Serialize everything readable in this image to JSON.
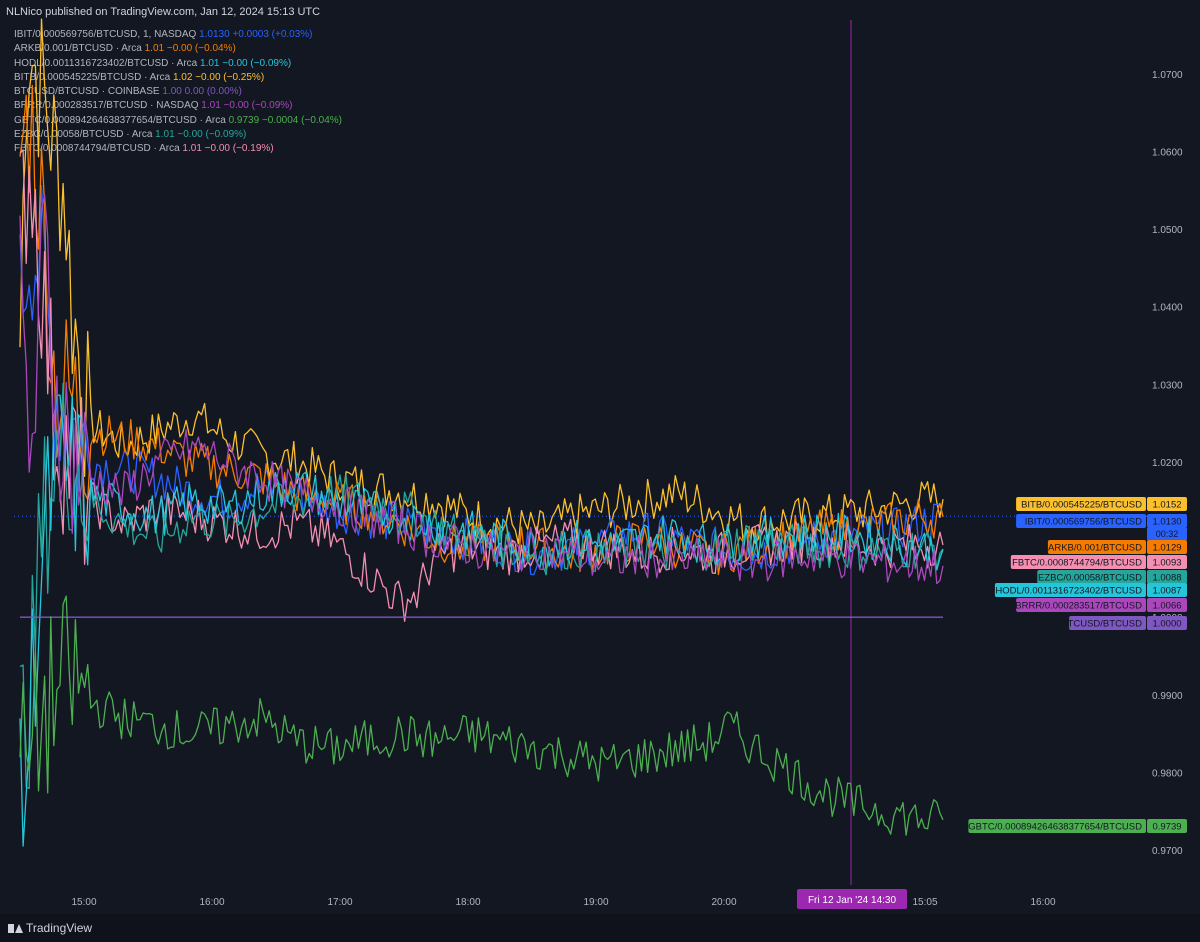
{
  "header": {
    "published": "NLNico published on TradingView.com, Jan 12, 2024 15:13 UTC"
  },
  "legend": [
    {
      "sym": "IBIT/0.000569756/BTCUSD, 1, NASDAQ",
      "vals": "1.0130  +0.0003 (+0.03%)",
      "color": "#2962ff"
    },
    {
      "sym": "ARKB/0.001/BTCUSD · Arca",
      "vals": "1.01  −0.00 (−0.04%)",
      "color": "#f57c00"
    },
    {
      "sym": "HODL/0.0011316723402/BTCUSD · Arca",
      "vals": "1.01  −0.00 (−0.09%)",
      "color": "#26c6da"
    },
    {
      "sym": "BITB/0.000545225/BTCUSD · Arca",
      "vals": "1.02  −0.00 (−0.25%)",
      "color": "#fbc02d"
    },
    {
      "sym": "BTCUSD/BTCUSD · COINBASE",
      "vals": "1.00  0.00 (0.00%)",
      "color": "#7e57c2"
    },
    {
      "sym": "BRRR/0.000283517/BTCUSD · NASDAQ",
      "vals": "1.01  −0.00 (−0.09%)",
      "color": "#ab47bc"
    },
    {
      "sym": "GBTC/0.000894264638377654/BTCUSD · Arca",
      "vals": "0.9739  −0.0004 (−0.04%)",
      "color": "#4caf50"
    },
    {
      "sym": "EZBC/0.00058/BTCUSD · Arca",
      "vals": "1.01  −0.00 (−0.09%)",
      "color": "#26a69a"
    },
    {
      "sym": "FBTC/0.0008744794/BTCUSD · Arca",
      "vals": "1.01  −0.00 (−0.19%)",
      "color": "#f48fb1"
    }
  ],
  "footer": {
    "brand": "TradingView"
  },
  "chart_data": {
    "type": "line",
    "title": "",
    "xlabel": "",
    "ylabel": "",
    "x_ticks": [
      "15:00",
      "16:00",
      "17:00",
      "18:00",
      "19:00",
      "20:00",
      "15:05",
      "16:00"
    ],
    "y_ticks": [
      "1.0700",
      "1.0600",
      "1.0500",
      "1.0400",
      "1.0300",
      "1.0200",
      "1.0100",
      "1.0000",
      "0.9900",
      "0.9800",
      "0.9700"
    ],
    "ylim": [
      0.9655,
      1.0795
    ],
    "crosshair_label": "Fri 12 Jan '24   14:30",
    "grid": false,
    "series": [
      {
        "name": "BITB/0.000545225/BTCUSD",
        "color": "#fbc02d",
        "last": 1.0152,
        "label": "1.0152",
        "points": [
          [
            0,
            1.035
          ],
          [
            0.02,
            1.075
          ],
          [
            0.05,
            1.07
          ],
          [
            0.08,
            1.065
          ],
          [
            0.1,
            1.06
          ],
          [
            0.13,
            1.055
          ],
          [
            0.15,
            1.04
          ],
          [
            0.2,
            1.025
          ],
          [
            0.3,
            1.022
          ],
          [
            0.4,
            1.024
          ],
          [
            0.5,
            1.026
          ],
          [
            0.6,
            1.023
          ],
          [
            0.7,
            1.021
          ],
          [
            0.8,
            1.02
          ],
          [
            0.9,
            1.018
          ],
          [
            1.0,
            1.017
          ],
          [
            1.1,
            1.016
          ],
          [
            1.2,
            1.015
          ],
          [
            1.3,
            1.013
          ],
          [
            1.4,
            1.012
          ],
          [
            1.5,
            1.011
          ],
          [
            1.6,
            1.013
          ],
          [
            1.7,
            1.014
          ],
          [
            1.8,
            1.015
          ],
          [
            1.9,
            1.016
          ],
          [
            2.0,
            1.014
          ],
          [
            2.1,
            1.012
          ],
          [
            2.3,
            1.013
          ],
          [
            2.5,
            1.014
          ],
          [
            2.6,
            1.015
          ],
          [
            2.67,
            1.0152
          ]
        ]
      },
      {
        "name": "IBIT/0.000569756/BTCUSD",
        "color": "#2962ff",
        "last": 1.013,
        "label": "1.0130",
        "points": [
          [
            0,
            1.04
          ],
          [
            0.03,
            1.05
          ],
          [
            0.06,
            1.045
          ],
          [
            0.1,
            1.03
          ],
          [
            0.15,
            1.025
          ],
          [
            0.2,
            1.02
          ],
          [
            0.3,
            1.019
          ],
          [
            0.4,
            1.018
          ],
          [
            0.5,
            1.016
          ],
          [
            0.6,
            1.015
          ],
          [
            0.7,
            1.017
          ],
          [
            0.8,
            1.016
          ],
          [
            0.9,
            1.014
          ],
          [
            1.0,
            1.013
          ],
          [
            1.1,
            1.012
          ],
          [
            1.2,
            1.011
          ],
          [
            1.3,
            1.01
          ],
          [
            1.4,
            1.009
          ],
          [
            1.5,
            1.008
          ],
          [
            1.6,
            1.009
          ],
          [
            1.7,
            1.01
          ],
          [
            1.8,
            1.011
          ],
          [
            1.9,
            1.01
          ],
          [
            2.0,
            1.009
          ],
          [
            2.1,
            1.008
          ],
          [
            2.3,
            1.01
          ],
          [
            2.5,
            1.011
          ],
          [
            2.6,
            1.012
          ],
          [
            2.67,
            1.013
          ]
        ]
      },
      {
        "name": "ARKB/0.001/BTCUSD",
        "color": "#f57c00",
        "last": 1.0129,
        "label": "1.0129",
        "points": [
          [
            0,
            1.06
          ],
          [
            0.03,
            1.065
          ],
          [
            0.07,
            1.05
          ],
          [
            0.1,
            1.03
          ],
          [
            0.15,
            1.028
          ],
          [
            0.2,
            1.024
          ],
          [
            0.3,
            1.023
          ],
          [
            0.4,
            1.022
          ],
          [
            0.5,
            1.02
          ],
          [
            0.6,
            1.019
          ],
          [
            0.7,
            1.018
          ],
          [
            0.8,
            1.016
          ],
          [
            0.9,
            1.015
          ],
          [
            1.0,
            1.014
          ],
          [
            1.1,
            1.012
          ],
          [
            1.2,
            1.01
          ],
          [
            1.3,
            1.009
          ],
          [
            1.4,
            1.01
          ],
          [
            1.5,
            1.009
          ],
          [
            1.6,
            1.008
          ],
          [
            1.7,
            1.009
          ],
          [
            1.8,
            1.01
          ],
          [
            1.9,
            1.009
          ],
          [
            2.0,
            1.008
          ],
          [
            2.1,
            1.009
          ],
          [
            2.3,
            1.011
          ],
          [
            2.5,
            1.012
          ],
          [
            2.6,
            1.013
          ],
          [
            2.67,
            1.0129
          ]
        ]
      },
      {
        "name": "FBTC/0.0008744794/BTCUSD",
        "color": "#f48fb1",
        "last": 1.0093,
        "label": "1.0093",
        "points": [
          [
            0,
            1.05
          ],
          [
            0.03,
            1.06
          ],
          [
            0.07,
            1.04
          ],
          [
            0.1,
            1.025
          ],
          [
            0.2,
            1.015
          ],
          [
            0.3,
            1.012
          ],
          [
            0.4,
            1.014
          ],
          [
            0.5,
            1.013
          ],
          [
            0.6,
            1.012
          ],
          [
            0.7,
            1.011
          ],
          [
            0.8,
            1.012
          ],
          [
            0.9,
            1.01
          ],
          [
            1.0,
            1.006
          ],
          [
            1.05,
            1.004
          ],
          [
            1.1,
            1.002
          ],
          [
            1.15,
            1.003
          ],
          [
            1.2,
            1.008
          ],
          [
            1.3,
            1.009
          ],
          [
            1.4,
            1.008
          ],
          [
            1.5,
            1.009
          ],
          [
            1.6,
            1.01
          ],
          [
            1.7,
            1.009
          ],
          [
            1.8,
            1.008
          ],
          [
            1.9,
            1.009
          ],
          [
            2.0,
            1.008
          ],
          [
            2.1,
            1.009
          ],
          [
            2.3,
            1.01
          ],
          [
            2.5,
            1.009
          ],
          [
            2.6,
            1.0095
          ],
          [
            2.67,
            1.0093
          ]
        ]
      },
      {
        "name": "EZBC/0.00058/BTCUSD",
        "color": "#26a69a",
        "last": 1.0088,
        "label": "1.0088",
        "points": [
          [
            0,
            0.985
          ],
          [
            0.03,
            0.99
          ],
          [
            0.06,
            1.01
          ],
          [
            0.1,
            1.02
          ],
          [
            0.15,
            1.022
          ],
          [
            0.2,
            1.015
          ],
          [
            0.3,
            1.012
          ],
          [
            0.4,
            1.01
          ],
          [
            0.5,
            1.013
          ],
          [
            0.6,
            1.012
          ],
          [
            0.7,
            1.014
          ],
          [
            0.8,
            1.015
          ],
          [
            0.9,
            1.016
          ],
          [
            1.0,
            1.015
          ],
          [
            1.1,
            1.014
          ],
          [
            1.2,
            1.012
          ],
          [
            1.3,
            1.01
          ],
          [
            1.4,
            1.009
          ],
          [
            1.5,
            1.008
          ],
          [
            1.6,
            1.009
          ],
          [
            1.7,
            1.008
          ],
          [
            1.8,
            1.009
          ],
          [
            1.9,
            1.008
          ],
          [
            2.0,
            1.009
          ],
          [
            2.1,
            1.01
          ],
          [
            2.3,
            1.009
          ],
          [
            2.5,
            1.0085
          ],
          [
            2.6,
            1.009
          ],
          [
            2.67,
            1.0088
          ]
        ]
      },
      {
        "name": "HODL/0.0011316723402/BTCUSD",
        "color": "#26c6da",
        "last": 1.0087,
        "label": "1.0087",
        "points": [
          [
            0,
            0.975
          ],
          [
            0.02,
            0.98
          ],
          [
            0.04,
            0.995
          ],
          [
            0.06,
            1.005
          ],
          [
            0.1,
            1.02
          ],
          [
            0.15,
            1.018
          ],
          [
            0.2,
            1.016
          ],
          [
            0.3,
            1.014
          ],
          [
            0.4,
            1.013
          ],
          [
            0.5,
            1.015
          ],
          [
            0.6,
            1.014
          ],
          [
            0.7,
            1.016
          ],
          [
            0.8,
            1.017
          ],
          [
            0.9,
            1.015
          ],
          [
            1.0,
            1.014
          ],
          [
            1.1,
            1.013
          ],
          [
            1.2,
            1.012
          ],
          [
            1.3,
            1.011
          ],
          [
            1.4,
            1.01
          ],
          [
            1.5,
            1.009
          ],
          [
            1.6,
            1.01
          ],
          [
            1.7,
            1.009
          ],
          [
            1.8,
            1.01
          ],
          [
            1.9,
            1.011
          ],
          [
            2.0,
            1.009
          ],
          [
            2.1,
            1.01
          ],
          [
            2.3,
            1.011
          ],
          [
            2.5,
            1.01
          ],
          [
            2.6,
            1.009
          ],
          [
            2.67,
            1.0087
          ]
        ]
      },
      {
        "name": "BRRR/0.000283517/BTCUSD",
        "color": "#ab47bc",
        "last": 1.0066,
        "label": "1.0066",
        "points": [
          [
            0,
            1.04
          ],
          [
            0.03,
            1.02
          ],
          [
            0.05,
            1.03
          ],
          [
            0.07,
            1.05
          ],
          [
            0.1,
            1.03
          ],
          [
            0.15,
            1.02
          ],
          [
            0.2,
            1.018
          ],
          [
            0.3,
            1.016
          ],
          [
            0.4,
            1.02
          ],
          [
            0.5,
            1.022
          ],
          [
            0.6,
            1.02
          ],
          [
            0.7,
            1.018
          ],
          [
            0.8,
            1.016
          ],
          [
            0.9,
            1.015
          ],
          [
            1.0,
            1.013
          ],
          [
            1.1,
            1.012
          ],
          [
            1.2,
            1.01
          ],
          [
            1.3,
            1.009
          ],
          [
            1.4,
            1.008
          ],
          [
            1.5,
            1.009
          ],
          [
            1.6,
            1.008
          ],
          [
            1.7,
            1.007
          ],
          [
            1.8,
            1.008
          ],
          [
            1.9,
            1.007
          ],
          [
            2.0,
            1.008
          ],
          [
            2.1,
            1.007
          ],
          [
            2.3,
            1.008
          ],
          [
            2.5,
            1.007
          ],
          [
            2.6,
            1.0068
          ],
          [
            2.67,
            1.0066
          ]
        ]
      },
      {
        "name": "BTCUSD/BTCUSD",
        "color": "#7e57c2",
        "last": 1.0,
        "label": "1.0000",
        "points": [
          [
            0,
            1.0
          ],
          [
            2.67,
            1.0
          ]
        ]
      },
      {
        "name": "GBTC/0.000894264638377654/BTCUSD",
        "color": "#4caf50",
        "last": 0.9739,
        "label": "0.9739",
        "points": [
          [
            0,
            0.982
          ],
          [
            0.02,
            0.98
          ],
          [
            0.05,
            0.985
          ],
          [
            0.1,
            0.99
          ],
          [
            0.15,
            0.992
          ],
          [
            0.2,
            0.989
          ],
          [
            0.3,
            0.987
          ],
          [
            0.4,
            0.986
          ],
          [
            0.5,
            0.985
          ],
          [
            0.6,
            0.986
          ],
          [
            0.7,
            0.987
          ],
          [
            0.8,
            0.984
          ],
          [
            0.9,
            0.983
          ],
          [
            1.0,
            0.984
          ],
          [
            1.1,
            0.985
          ],
          [
            1.2,
            0.984
          ],
          [
            1.3,
            0.985
          ],
          [
            1.4,
            0.984
          ],
          [
            1.5,
            0.983
          ],
          [
            1.6,
            0.982
          ],
          [
            1.7,
            0.981
          ],
          [
            1.8,
            0.982
          ],
          [
            1.9,
            0.983
          ],
          [
            2.0,
            0.984
          ],
          [
            2.05,
            0.986
          ],
          [
            2.1,
            0.984
          ],
          [
            2.2,
            0.981
          ],
          [
            2.3,
            0.978
          ],
          [
            2.4,
            0.976
          ],
          [
            2.5,
            0.975
          ],
          [
            2.6,
            0.974
          ],
          [
            2.67,
            0.9739
          ]
        ]
      }
    ]
  }
}
